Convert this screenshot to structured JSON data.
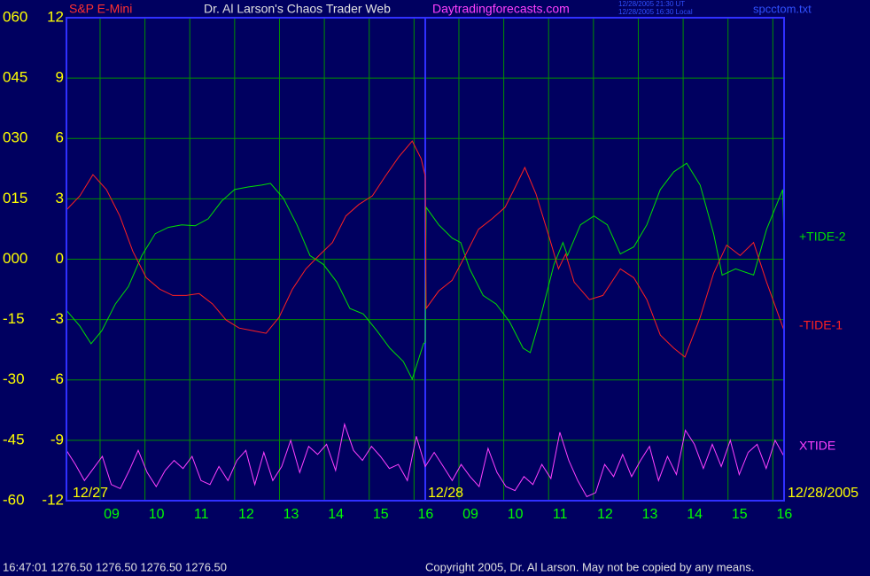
{
  "chart_data": {
    "type": "line",
    "header": {
      "symbol": "S&P E-Mini",
      "title": "Dr. Al Larson's Chaos Trader Web",
      "site": "Daytradingforecasts.com",
      "time_ut": "12/28/2005 21:30 UT",
      "time_local": "12/28/2005 16:30 Local",
      "file": "spcctom.txt"
    },
    "footer": {
      "quote": "16:47:01  1276.50 1276.50 1276.50 1276.50",
      "copyright": "Copyright 2005, Dr. Al Larson. May not be copied by any means."
    },
    "day_labels": [
      "12/27",
      "12/28",
      "12/28/2005"
    ],
    "separators": [
      8
    ],
    "xlim": [
      0,
      16
    ],
    "xticks": [
      {
        "value": 0.75,
        "label": "09"
      },
      {
        "value": 1.75,
        "label": "10"
      },
      {
        "value": 2.75,
        "label": "11"
      },
      {
        "value": 3.75,
        "label": "12"
      },
      {
        "value": 4.75,
        "label": "13"
      },
      {
        "value": 5.75,
        "label": "14"
      },
      {
        "value": 6.75,
        "label": "15"
      },
      {
        "value": 7.75,
        "label": "16"
      },
      {
        "value": 8.75,
        "label": "09"
      },
      {
        "value": 9.75,
        "label": "10"
      },
      {
        "value": 10.75,
        "label": "11"
      },
      {
        "value": 11.75,
        "label": "12"
      },
      {
        "value": 12.75,
        "label": "13"
      },
      {
        "value": 13.75,
        "label": "14"
      },
      {
        "value": 14.75,
        "label": "15"
      },
      {
        "value": 15.75,
        "label": "16"
      }
    ],
    "ylim": [
      -12,
      12
    ],
    "yticks": [
      12,
      9,
      6,
      3,
      0,
      -3,
      -6,
      -9,
      -12
    ],
    "y2lim": [
      -60,
      60
    ],
    "y2ticks": [
      {
        "value": 60,
        "label": "060"
      },
      {
        "value": 45,
        "label": "045"
      },
      {
        "value": 30,
        "label": "030"
      },
      {
        "value": 15,
        "label": "015"
      },
      {
        "value": 0,
        "label": "000"
      },
      -15,
      -30,
      -45,
      -60
    ],
    "grid": true,
    "series": [
      {
        "name": "+TIDE-2",
        "color": "#00e000",
        "x": [
          0,
          0.3,
          0.55,
          0.79,
          1.09,
          1.38,
          1.68,
          1.98,
          2.27,
          2.57,
          2.87,
          3.16,
          3.46,
          3.75,
          4.05,
          4.35,
          4.55,
          4.84,
          5.14,
          5.43,
          5.73,
          6.03,
          6.32,
          6.62,
          6.92,
          7.21,
          7.51,
          7.71,
          7.96,
          8.0,
          8.02,
          8.3,
          8.6,
          8.79,
          8.99,
          9.29,
          9.58,
          9.88,
          10.18,
          10.34,
          10.57,
          10.87,
          11.07,
          11.17,
          11.46,
          11.76,
          12.06,
          12.35,
          12.65,
          12.94,
          13.24,
          13.54,
          13.83,
          14.13,
          14.43,
          14.62,
          14.92,
          15.32,
          15.61,
          15.97,
          16.0
        ],
        "values": [
          -2.54,
          -3.33,
          -4.2,
          -3.55,
          -2.23,
          -1.36,
          0.18,
          1.27,
          1.58,
          1.71,
          1.66,
          2.01,
          2.89,
          3.46,
          3.59,
          3.68,
          3.77,
          3.02,
          1.71,
          0.18,
          -0.26,
          -1.14,
          -2.45,
          -2.72,
          -3.55,
          -4.42,
          -5.08,
          -5.96,
          -4.2,
          -4.12,
          2.58,
          1.71,
          1.05,
          0.83,
          -0.48,
          -1.8,
          -2.23,
          -3.11,
          -4.42,
          -4.64,
          -2.89,
          -0.26,
          0.83,
          0.18,
          1.71,
          2.15,
          1.71,
          0.26,
          0.61,
          1.71,
          3.46,
          4.34,
          4.77,
          3.68,
          1.27,
          -0.79,
          -0.48,
          -0.79,
          1.49,
          3.46,
          0.96
        ]
      },
      {
        "name": "-TIDE-1",
        "color": "#ff2020",
        "x": [
          0,
          0.3,
          0.59,
          0.89,
          1.19,
          1.48,
          1.78,
          2.08,
          2.37,
          2.67,
          2.96,
          3.26,
          3.56,
          3.85,
          4.15,
          4.45,
          4.74,
          5.04,
          5.34,
          5.63,
          5.93,
          6.23,
          6.52,
          6.82,
          7.11,
          7.41,
          7.71,
          7.91,
          8.0,
          8.02,
          8.3,
          8.6,
          8.89,
          9.19,
          9.49,
          9.78,
          9.98,
          10.22,
          10.47,
          10.77,
          10.97,
          11.13,
          11.32,
          11.66,
          11.96,
          12.35,
          12.65,
          12.94,
          13.24,
          13.54,
          13.79,
          14.13,
          14.43,
          14.72,
          15.02,
          15.32,
          15.61,
          16.0
        ],
        "values": [
          2.45,
          3.15,
          4.2,
          3.46,
          2.15,
          0.39,
          -0.92,
          -1.49,
          -1.8,
          -1.8,
          -1.71,
          -2.23,
          -3.02,
          -3.42,
          -3.55,
          -3.68,
          -2.89,
          -1.49,
          -0.48,
          0.18,
          0.83,
          2.15,
          2.72,
          3.15,
          4.12,
          5.08,
          5.87,
          4.99,
          4.12,
          -2.45,
          -1.58,
          -1.05,
          0.18,
          1.49,
          2.01,
          2.58,
          3.46,
          4.56,
          3.24,
          1.05,
          -0.48,
          0.26,
          -1.14,
          -2.01,
          -1.8,
          -0.48,
          -0.92,
          -2.01,
          -3.77,
          -4.42,
          -4.86,
          -2.89,
          -0.7,
          0.7,
          0.18,
          0.83,
          -1.14,
          -3.55
        ]
      },
      {
        "name": "XTIDE",
        "color": "#ff40ff",
        "x": [
          0,
          0.2,
          0.4,
          0.6,
          0.8,
          1.0,
          1.2,
          1.4,
          1.6,
          1.8,
          2.0,
          2.2,
          2.4,
          2.6,
          2.8,
          3.0,
          3.2,
          3.4,
          3.6,
          3.8,
          4.0,
          4.2,
          4.4,
          4.6,
          4.8,
          5.0,
          5.2,
          5.4,
          5.6,
          5.8,
          6.0,
          6.2,
          6.4,
          6.6,
          6.8,
          7.0,
          7.2,
          7.4,
          7.6,
          7.8,
          8.0,
          8.2,
          8.4,
          8.6,
          8.8,
          9.0,
          9.2,
          9.4,
          9.6,
          9.8,
          10.0,
          10.2,
          10.4,
          10.6,
          10.8,
          11.0,
          11.2,
          11.4,
          11.6,
          11.8,
          12.0,
          12.2,
          12.4,
          12.6,
          12.8,
          13.0,
          13.2,
          13.4,
          13.6,
          13.8,
          14.0,
          14.2,
          14.4,
          14.6,
          14.8,
          15.0,
          15.2,
          15.4,
          15.6,
          15.8,
          16.0
        ],
        "values": [
          -9.5,
          -10.2,
          -11.0,
          -10.4,
          -9.8,
          -11.2,
          -11.4,
          -10.5,
          -9.5,
          -10.6,
          -11.3,
          -10.5,
          -10.0,
          -10.4,
          -9.8,
          -11.0,
          -11.2,
          -10.3,
          -11.0,
          -10.0,
          -9.5,
          -11.2,
          -9.6,
          -11.0,
          -10.3,
          -9.0,
          -10.6,
          -9.3,
          -9.7,
          -9.2,
          -10.5,
          -8.2,
          -9.5,
          -10.0,
          -9.3,
          -9.8,
          -10.4,
          -10.2,
          -11.0,
          -8.8,
          -10.3,
          -9.6,
          -10.3,
          -11.0,
          -10.2,
          -10.8,
          -11.3,
          -9.4,
          -10.6,
          -11.3,
          -11.5,
          -10.8,
          -11.2,
          -10.2,
          -10.9,
          -8.6,
          -10.0,
          -11.0,
          -11.8,
          -11.6,
          -10.2,
          -10.8,
          -9.7,
          -10.8,
          -10.0,
          -9.3,
          -11.0,
          -9.8,
          -10.7,
          -8.5,
          -9.2,
          -10.4,
          -9.2,
          -10.3,
          -9.0,
          -10.7,
          -9.6,
          -9.2,
          -10.4,
          -9.0,
          -9.8
        ]
      }
    ]
  }
}
